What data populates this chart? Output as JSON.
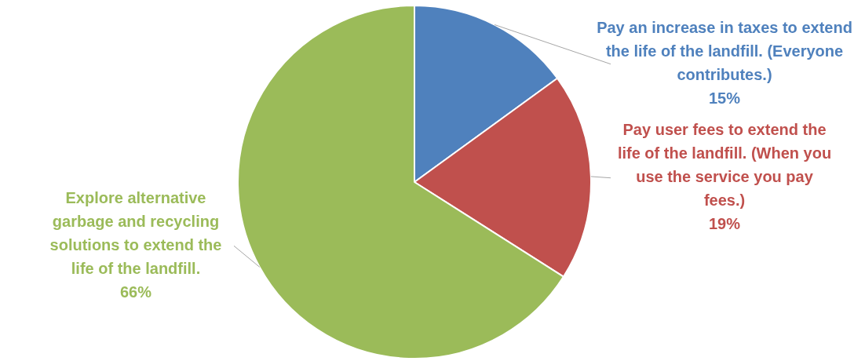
{
  "chart_data": {
    "type": "pie",
    "categories": [
      "Pay an increase in taxes to extend the life of the landfill. (Everyone contributes.)",
      "Pay user fees to extend the life of the landfill. (When you use the service you pay fees.)",
      "Explore alternative garbage and recycling solutions to extend the life of the landfill."
    ],
    "values": [
      15,
      19,
      66
    ],
    "colors": [
      "#4f81bd",
      "#c0504d",
      "#9bbb59"
    ],
    "value_labels": [
      "15%",
      "19%",
      "66%"
    ]
  }
}
